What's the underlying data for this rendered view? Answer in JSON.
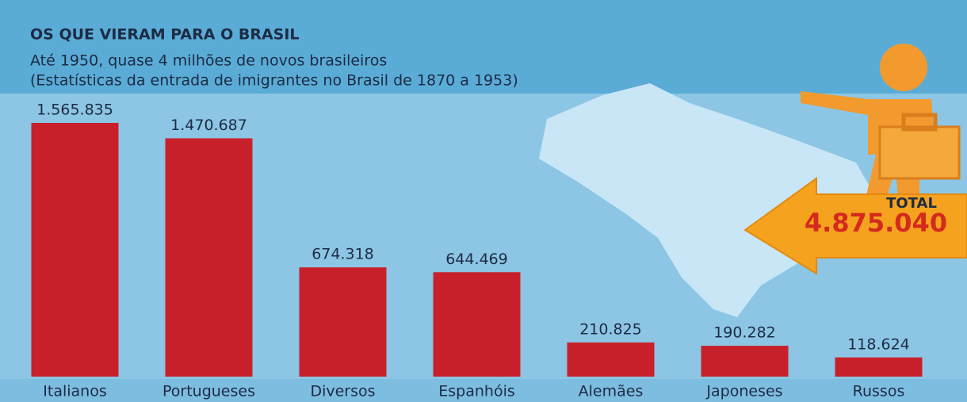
{
  "chart_data": {
    "type": "bar",
    "title": "OS QUE VIERAM PARA O BRASIL",
    "subtitle": [
      "Até 1950, quase 4 milhões de novos brasileiros",
      "(Estatísticas da entrada de imigrantes no Brasil de 1870 a 1953)"
    ],
    "categories": [
      "Italianos",
      "Portugueses",
      "Diversos",
      "Espanhóis",
      "Alemães",
      "Japoneses",
      "Russos"
    ],
    "values": [
      1565835,
      1470687,
      674318,
      644469,
      210825,
      190282,
      118624
    ],
    "value_labels": [
      "1.565.835",
      "1.470.687",
      "674.318",
      "644.469",
      "210.825",
      "190.282",
      "118.624"
    ],
    "color": "#c8202a",
    "annotation": {
      "label": "TOTAL",
      "text": "4.875.040"
    }
  }
}
